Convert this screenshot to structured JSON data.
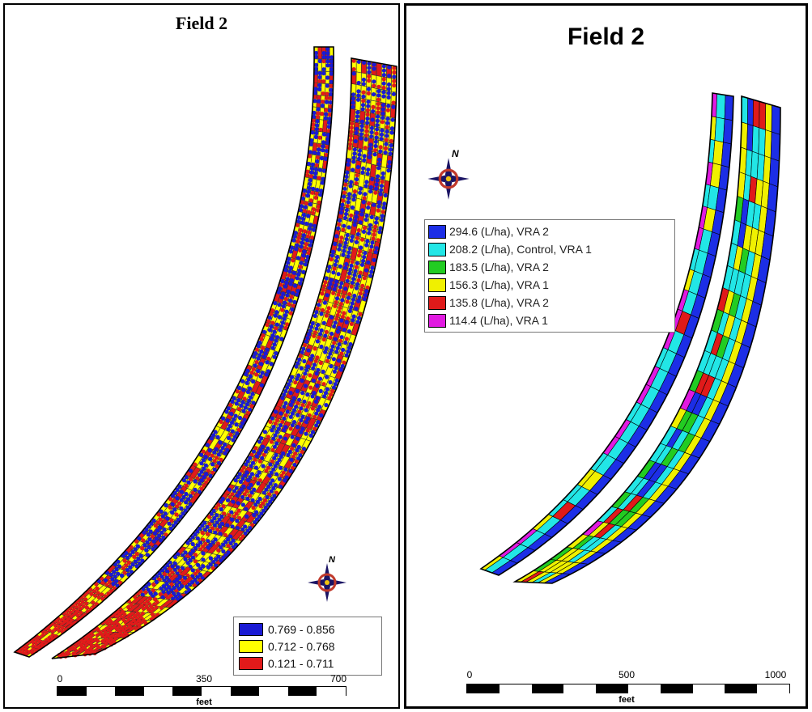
{
  "left_map": {
    "title": "Field 2",
    "legend": [
      {
        "label": "0.769 - 0.856",
        "color": "#1a1ad4"
      },
      {
        "label": "0.712 - 0.768",
        "color": "#ffff00"
      },
      {
        "label": "0.121 - 0.711",
        "color": "#e11a1a"
      }
    ],
    "scale": {
      "ticks": [
        "0",
        "350",
        "700"
      ],
      "unit": "feet"
    },
    "north_label": "N"
  },
  "right_map": {
    "title": "Field 2",
    "legend": [
      {
        "label": "294.6 (L/ha), VRA 2",
        "color": "#1c2ee6"
      },
      {
        "label": "208.2 (L/ha), Control, VRA 1",
        "color": "#22e6e6"
      },
      {
        "label": "183.5 (L/ha), VRA 2",
        "color": "#22cc22"
      },
      {
        "label": "156.3 (L/ha), VRA 1",
        "color": "#f0f000"
      },
      {
        "label": "135.8 (L/ha), VRA 2",
        "color": "#e01a1a"
      },
      {
        "label": "114.4 (L/ha), VRA 1",
        "color": "#e11ae1"
      }
    ],
    "scale": {
      "ticks": [
        "0",
        "500",
        "1000"
      ],
      "unit": "feet"
    },
    "north_label": "N"
  }
}
